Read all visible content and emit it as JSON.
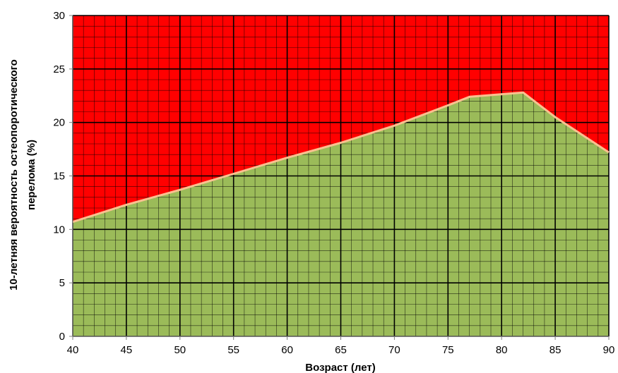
{
  "chart_data": {
    "type": "area",
    "xlabel": "Возраст (лет)",
    "ylabel_lines": [
      "10-летняя вероятность остеопоротического",
      "перелома (%)"
    ],
    "xlim": [
      40,
      90
    ],
    "ylim": [
      0,
      30
    ],
    "x_ticks": [
      40,
      45,
      50,
      55,
      60,
      65,
      70,
      75,
      80,
      85,
      90
    ],
    "y_ticks": [
      0,
      5,
      10,
      15,
      20,
      25,
      30
    ],
    "major_grid_step_x": 5,
    "major_grid_step_y": 5,
    "minor_grid_step_x": 1,
    "minor_grid_step_y": 1,
    "grid": true,
    "legend": "none",
    "regions": [
      {
        "label": "above threshold",
        "color": "#ff0000",
        "position": "above line"
      },
      {
        "label": "below threshold",
        "color": "#9bbb59",
        "position": "below line"
      }
    ],
    "line_color": "#fac090",
    "threshold": {
      "x": [
        40,
        45,
        50,
        55,
        60,
        65,
        70,
        75,
        77,
        82,
        85,
        90
      ],
      "y": [
        10.7,
        12.3,
        13.7,
        15.2,
        16.7,
        18.1,
        19.7,
        21.6,
        22.4,
        22.8,
        20.5,
        17.2
      ]
    }
  }
}
